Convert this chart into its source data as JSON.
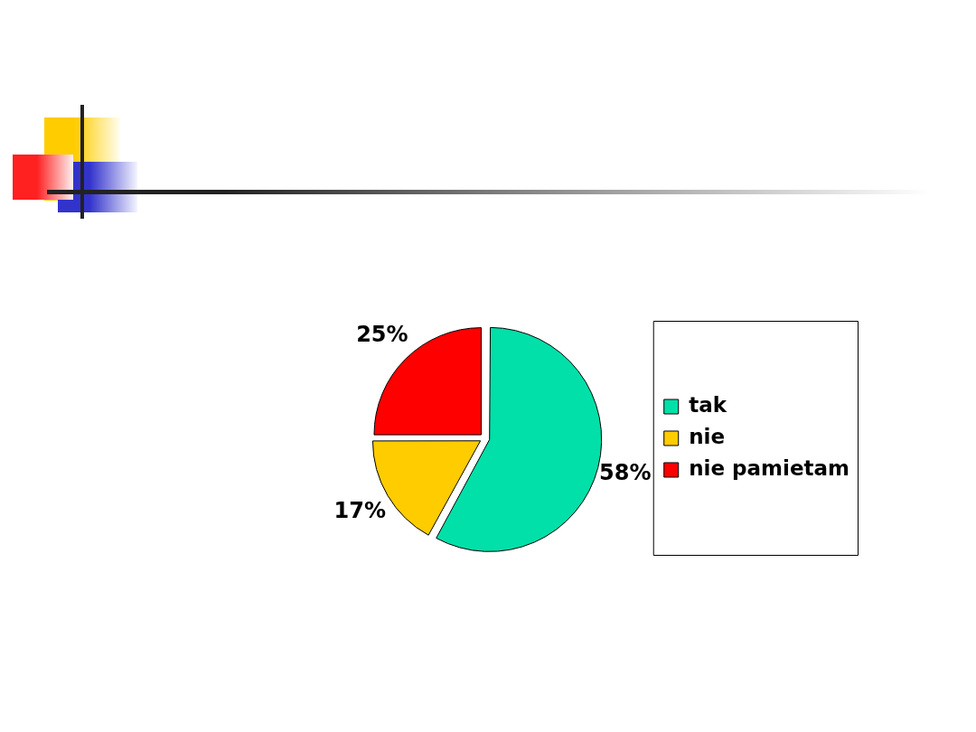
{
  "chart_data": {
    "type": "pie",
    "categories": [
      "tak",
      "nie",
      "nie pamietam"
    ],
    "values": [
      58,
      17,
      25
    ],
    "colors": [
      "#00e0a8",
      "#ffcc00",
      "#ff0000"
    ],
    "value_labels": [
      "58%",
      "17%",
      "25%"
    ],
    "legend": "right"
  }
}
